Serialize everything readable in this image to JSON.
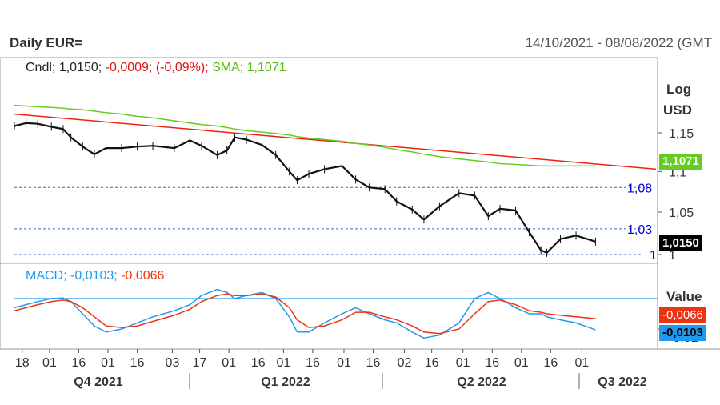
{
  "title": "Daily EUR=",
  "date_range": "14/10/2021 - 08/08/2022 (GMT",
  "price_legend": {
    "cndl_label": "Cndl;",
    "cndl_value": "1,0150;",
    "change": "-0,0009;",
    "change_pct": "(-0,09%);",
    "sma_label": "SMA;",
    "sma_value": "1,1071"
  },
  "macd_legend": {
    "label": "MACD;",
    "macd_value": "-0,0103;",
    "signal_value": "-0,0066"
  },
  "price_axis": {
    "scale": "Log",
    "unit": "USD",
    "ticks": [
      "1,15",
      "1,1",
      "1,05",
      "1"
    ]
  },
  "macd_axis": {
    "title": "Value",
    "ticks": [
      "-0,01"
    ]
  },
  "tags": {
    "sma": "1,1071",
    "last": "1,0150",
    "macd_signal": "-0,0066",
    "macd": "-0,0103"
  },
  "levels": [
    {
      "label": "1,08",
      "value": 1.08
    },
    {
      "label": "1,03",
      "value": 1.03
    },
    {
      "label": "1",
      "value": 1.0
    }
  ],
  "x_axis": {
    "day_labels": [
      "18",
      "01",
      "16",
      "01",
      "16",
      "03",
      "17",
      "01",
      "16",
      "01",
      "16",
      "01",
      "16",
      "02",
      "16",
      "01",
      "16",
      "01",
      "16",
      "01"
    ],
    "quarters": [
      "Q4 2021",
      "Q1 2022",
      "Q2 2022",
      "Q3 2022"
    ]
  },
  "colors": {
    "candle": "#111111",
    "sma": "#66cc22",
    "trend": "#ee2211",
    "level": "#3366cc",
    "macd": "#2299ee",
    "signal": "#ee3311",
    "zero": "#2299ee",
    "label_blue": "#0000cc"
  },
  "chart_data": [
    {
      "type": "line",
      "title": "Daily EUR=",
      "scale": "log",
      "ylabel": "USD",
      "ylim": [
        0.995,
        1.19
      ],
      "x": [
        "2021-10-14",
        "2021-10-20",
        "2021-10-26",
        "2021-11-02",
        "2021-11-08",
        "2021-11-12",
        "2021-11-18",
        "2021-11-24",
        "2021-11-30",
        "2021-12-08",
        "2021-12-16",
        "2021-12-24",
        "2022-01-04",
        "2022-01-12",
        "2022-01-18",
        "2022-01-26",
        "2022-01-31",
        "2022-02-04",
        "2022-02-10",
        "2022-02-18",
        "2022-02-25",
        "2022-03-04",
        "2022-03-08",
        "2022-03-14",
        "2022-03-22",
        "2022-03-31",
        "2022-04-07",
        "2022-04-14",
        "2022-04-22",
        "2022-04-28",
        "2022-05-06",
        "2022-05-12",
        "2022-05-20",
        "2022-05-30",
        "2022-06-07",
        "2022-06-14",
        "2022-06-20",
        "2022-06-28",
        "2022-07-05",
        "2022-07-11",
        "2022-07-14",
        "2022-07-21",
        "2022-07-29",
        "2022-08-08"
      ],
      "series": [
        {
          "name": "Cndl",
          "values": [
            1.159,
            1.163,
            1.162,
            1.158,
            1.155,
            1.144,
            1.132,
            1.122,
            1.13,
            1.13,
            1.132,
            1.133,
            1.13,
            1.14,
            1.133,
            1.121,
            1.127,
            1.144,
            1.141,
            1.134,
            1.121,
            1.1,
            1.089,
            1.097,
            1.103,
            1.107,
            1.09,
            1.08,
            1.078,
            1.063,
            1.053,
            1.041,
            1.057,
            1.073,
            1.07,
            1.045,
            1.054,
            1.052,
            1.026,
            1.005,
            1.002,
            1.018,
            1.022,
            1.015
          ]
        },
        {
          "name": "SMA",
          "values": [
            1.187,
            1.186,
            1.185,
            1.184,
            1.183,
            1.182,
            1.181,
            1.179,
            1.177,
            1.175,
            1.172,
            1.17,
            1.166,
            1.163,
            1.161,
            1.159,
            1.157,
            1.155,
            1.153,
            1.151,
            1.149,
            1.147,
            1.145,
            1.143,
            1.141,
            1.139,
            1.136,
            1.134,
            1.131,
            1.128,
            1.125,
            1.122,
            1.119,
            1.116,
            1.114,
            1.112,
            1.11,
            1.109,
            1.108,
            1.107,
            1.107,
            1.107,
            1.107,
            1.107
          ]
        }
      ]
    },
    {
      "type": "line",
      "title": "MACD",
      "ylabel": "Value",
      "x": [
        "2021-10-14",
        "2021-10-20",
        "2021-10-26",
        "2021-11-02",
        "2021-11-08",
        "2021-11-12",
        "2021-11-18",
        "2021-11-24",
        "2021-11-30",
        "2021-12-08",
        "2021-12-16",
        "2021-12-24",
        "2022-01-04",
        "2022-01-12",
        "2022-01-18",
        "2022-01-26",
        "2022-01-31",
        "2022-02-04",
        "2022-02-10",
        "2022-02-18",
        "2022-02-25",
        "2022-03-04",
        "2022-03-08",
        "2022-03-14",
        "2022-03-22",
        "2022-03-31",
        "2022-04-07",
        "2022-04-14",
        "2022-04-22",
        "2022-04-28",
        "2022-05-06",
        "2022-05-12",
        "2022-05-20",
        "2022-05-30",
        "2022-06-07",
        "2022-06-14",
        "2022-06-20",
        "2022-06-28",
        "2022-07-05",
        "2022-07-11",
        "2022-07-14",
        "2022-07-21",
        "2022-07-29",
        "2022-08-08"
      ],
      "series": [
        {
          "name": "MACD",
          "values": [
            -0.003,
            -0.002,
            -0.001,
            0.0,
            0.0002,
            -0.001,
            -0.005,
            -0.009,
            -0.011,
            -0.01,
            -0.008,
            -0.006,
            -0.004,
            -0.002,
            0.001,
            0.003,
            0.002,
            0.0,
            0.001,
            0.002,
            0.0,
            -0.006,
            -0.011,
            -0.011,
            -0.008,
            -0.005,
            -0.003,
            -0.005,
            -0.007,
            -0.008,
            -0.011,
            -0.013,
            -0.012,
            -0.008,
            0.0,
            0.002,
            0.0,
            -0.003,
            -0.005,
            -0.005,
            -0.006,
            -0.007,
            -0.008,
            -0.0103
          ]
        },
        {
          "name": "Signal",
          "values": [
            -0.004,
            -0.003,
            -0.002,
            -0.001,
            -0.0005,
            -0.001,
            -0.003,
            -0.006,
            -0.009,
            -0.0095,
            -0.009,
            -0.0075,
            -0.0055,
            -0.0035,
            -0.001,
            0.001,
            0.0015,
            0.001,
            0.001,
            0.0015,
            0.0005,
            -0.003,
            -0.007,
            -0.0095,
            -0.009,
            -0.007,
            -0.0045,
            -0.0045,
            -0.006,
            -0.007,
            -0.009,
            -0.011,
            -0.0115,
            -0.01,
            -0.005,
            -0.001,
            -0.0005,
            -0.002,
            -0.004,
            -0.0045,
            -0.005,
            -0.0055,
            -0.006,
            -0.0066
          ]
        }
      ]
    }
  ]
}
